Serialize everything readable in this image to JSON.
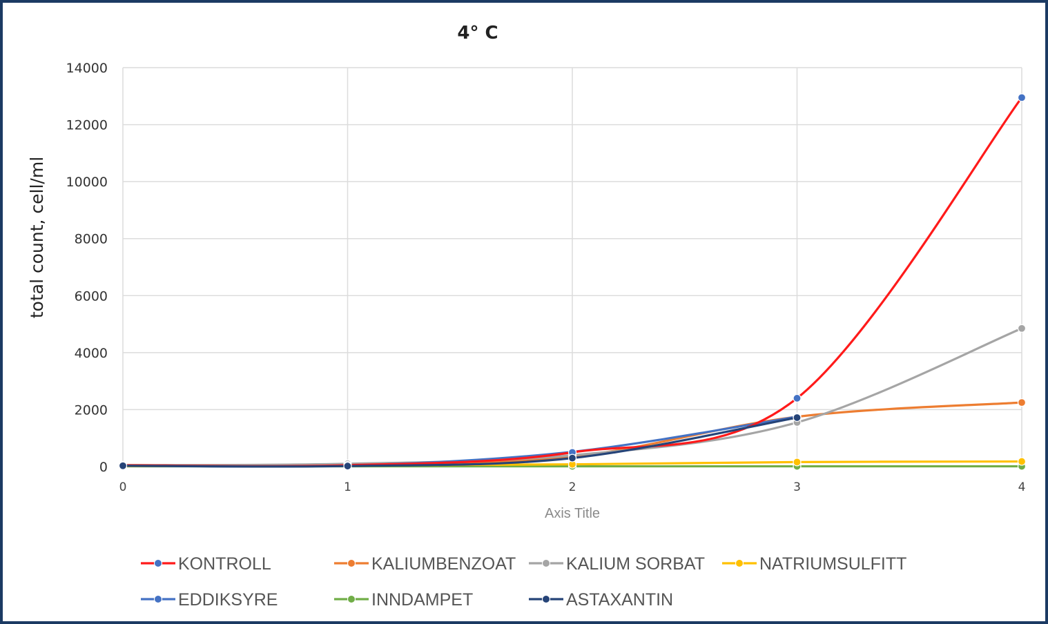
{
  "chart_data": {
    "type": "line",
    "title": "4° C",
    "xlabel": "Axis Title",
    "ylabel": "total count, cell/ml",
    "x": [
      0,
      1,
      2,
      3,
      4
    ],
    "ylim": [
      0,
      14000
    ],
    "yticks": [
      0,
      2000,
      4000,
      6000,
      8000,
      10000,
      12000,
      14000
    ],
    "xlim": [
      0,
      4
    ],
    "grid": true,
    "legend_position": "bottom",
    "smoothed": true,
    "series": [
      {
        "name": "KONTROLL",
        "color": "#ff1a1a",
        "marker_color": "#4472c4",
        "values": [
          50,
          50,
          500,
          2400,
          12950
        ]
      },
      {
        "name": "KALIUMBENZOAT",
        "color": "#ed7d31",
        "values": [
          50,
          80,
          350,
          1750,
          2250
        ]
      },
      {
        "name": "KALIUM SORBAT",
        "color": "#a5a5a5",
        "values": [
          50,
          100,
          400,
          1550,
          4850
        ]
      },
      {
        "name": "NATRIUMSULFITT",
        "color": "#ffc000",
        "values": [
          20,
          40,
          80,
          160,
          180
        ]
      },
      {
        "name": "EDDIKSYRE",
        "color": "#4472c4",
        "values": [
          40,
          40,
          520,
          1750,
          null
        ]
      },
      {
        "name": "INNDAMPET",
        "color": "#70ad47",
        "values": [
          10,
          10,
          10,
          10,
          10
        ]
      },
      {
        "name": "ASTAXANTIN",
        "color": "#264478",
        "values": [
          30,
          20,
          300,
          1720,
          null
        ]
      }
    ]
  }
}
